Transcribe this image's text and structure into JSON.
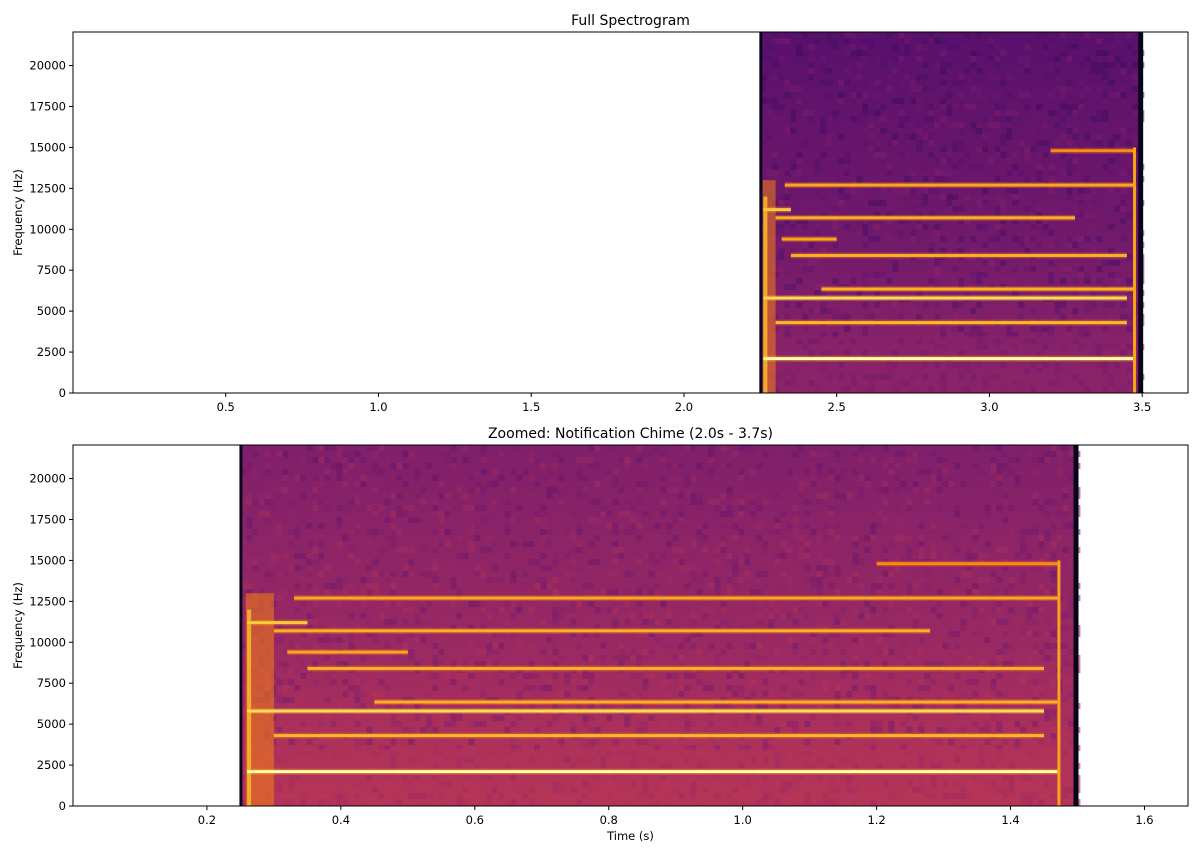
{
  "chart_data": [
    {
      "type": "heatmap",
      "title": "Full Spectrogram",
      "xlabel": "",
      "ylabel": "Frequency (Hz)",
      "xlim": [
        0.0,
        3.65
      ],
      "ylim": [
        0,
        22050
      ],
      "x_ticks": [
        0.5,
        1.0,
        1.5,
        2.0,
        2.5,
        3.0,
        3.5
      ],
      "x_tick_labels": [
        "0.5",
        "1.0",
        "1.5",
        "2.0",
        "2.5",
        "3.0",
        "3.5"
      ],
      "y_ticks": [
        0,
        2500,
        5000,
        7500,
        10000,
        12500,
        15000,
        17500,
        20000
      ],
      "y_tick_labels": [
        "0",
        "2500",
        "5000",
        "7500",
        "10000",
        "12500",
        "15000",
        "17500",
        "20000"
      ],
      "data_extent_x": [
        2.25,
        3.5
      ],
      "colormap": "inferno",
      "grid": false,
      "harmonics": [
        {
          "freq_hz": 2100,
          "start_s": 2.26,
          "end_s": 3.47,
          "level": 1.0
        },
        {
          "freq_hz": 5800,
          "start_s": 2.26,
          "end_s": 3.45,
          "level": 0.8
        },
        {
          "freq_hz": 4300,
          "start_s": 2.3,
          "end_s": 3.45,
          "level": 0.6
        },
        {
          "freq_hz": 6350,
          "start_s": 2.45,
          "end_s": 3.47,
          "level": 0.55
        },
        {
          "freq_hz": 8400,
          "start_s": 2.35,
          "end_s": 3.45,
          "level": 0.55
        },
        {
          "freq_hz": 9400,
          "start_s": 2.32,
          "end_s": 2.5,
          "level": 0.5
        },
        {
          "freq_hz": 10700,
          "start_s": 2.3,
          "end_s": 3.28,
          "level": 0.55
        },
        {
          "freq_hz": 11200,
          "start_s": 2.26,
          "end_s": 2.35,
          "level": 0.7
        },
        {
          "freq_hz": 12700,
          "start_s": 2.33,
          "end_s": 3.47,
          "level": 0.5
        },
        {
          "freq_hz": 14800,
          "start_s": 3.2,
          "end_s": 3.47,
          "level": 0.35
        }
      ]
    },
    {
      "type": "heatmap",
      "title": "Zoomed: Notification Chime (2.0s - 3.7s)",
      "xlabel": "Time (s)",
      "ylabel": "Frequency (Hz)",
      "xlim": [
        0.0,
        1.665
      ],
      "ylim": [
        0,
        22050
      ],
      "x_ticks": [
        0.2,
        0.4,
        0.6,
        0.8,
        1.0,
        1.2,
        1.4,
        1.6
      ],
      "x_tick_labels": [
        "0.2",
        "0.4",
        "0.6",
        "0.8",
        "1.0",
        "1.2",
        "1.4",
        "1.6"
      ],
      "y_ticks": [
        0,
        2500,
        5000,
        7500,
        10000,
        12500,
        15000,
        17500,
        20000
      ],
      "y_tick_labels": [
        "0",
        "2500",
        "5000",
        "7500",
        "10000",
        "12500",
        "15000",
        "17500",
        "20000"
      ],
      "data_extent_x": [
        0.25,
        1.5
      ],
      "colormap": "inferno",
      "grid": false,
      "harmonics": [
        {
          "freq_hz": 2100,
          "start_s": 0.26,
          "end_s": 1.47,
          "level": 1.0
        },
        {
          "freq_hz": 5800,
          "start_s": 0.26,
          "end_s": 1.45,
          "level": 0.8
        },
        {
          "freq_hz": 4300,
          "start_s": 0.3,
          "end_s": 1.45,
          "level": 0.6
        },
        {
          "freq_hz": 6350,
          "start_s": 0.45,
          "end_s": 1.47,
          "level": 0.55
        },
        {
          "freq_hz": 8400,
          "start_s": 0.35,
          "end_s": 1.45,
          "level": 0.55
        },
        {
          "freq_hz": 9400,
          "start_s": 0.32,
          "end_s": 0.5,
          "level": 0.5
        },
        {
          "freq_hz": 10700,
          "start_s": 0.3,
          "end_s": 1.28,
          "level": 0.55
        },
        {
          "freq_hz": 11200,
          "start_s": 0.26,
          "end_s": 0.35,
          "level": 0.7
        },
        {
          "freq_hz": 12700,
          "start_s": 0.33,
          "end_s": 1.47,
          "level": 0.5
        },
        {
          "freq_hz": 14800,
          "start_s": 1.2,
          "end_s": 1.47,
          "level": 0.35
        }
      ]
    }
  ]
}
